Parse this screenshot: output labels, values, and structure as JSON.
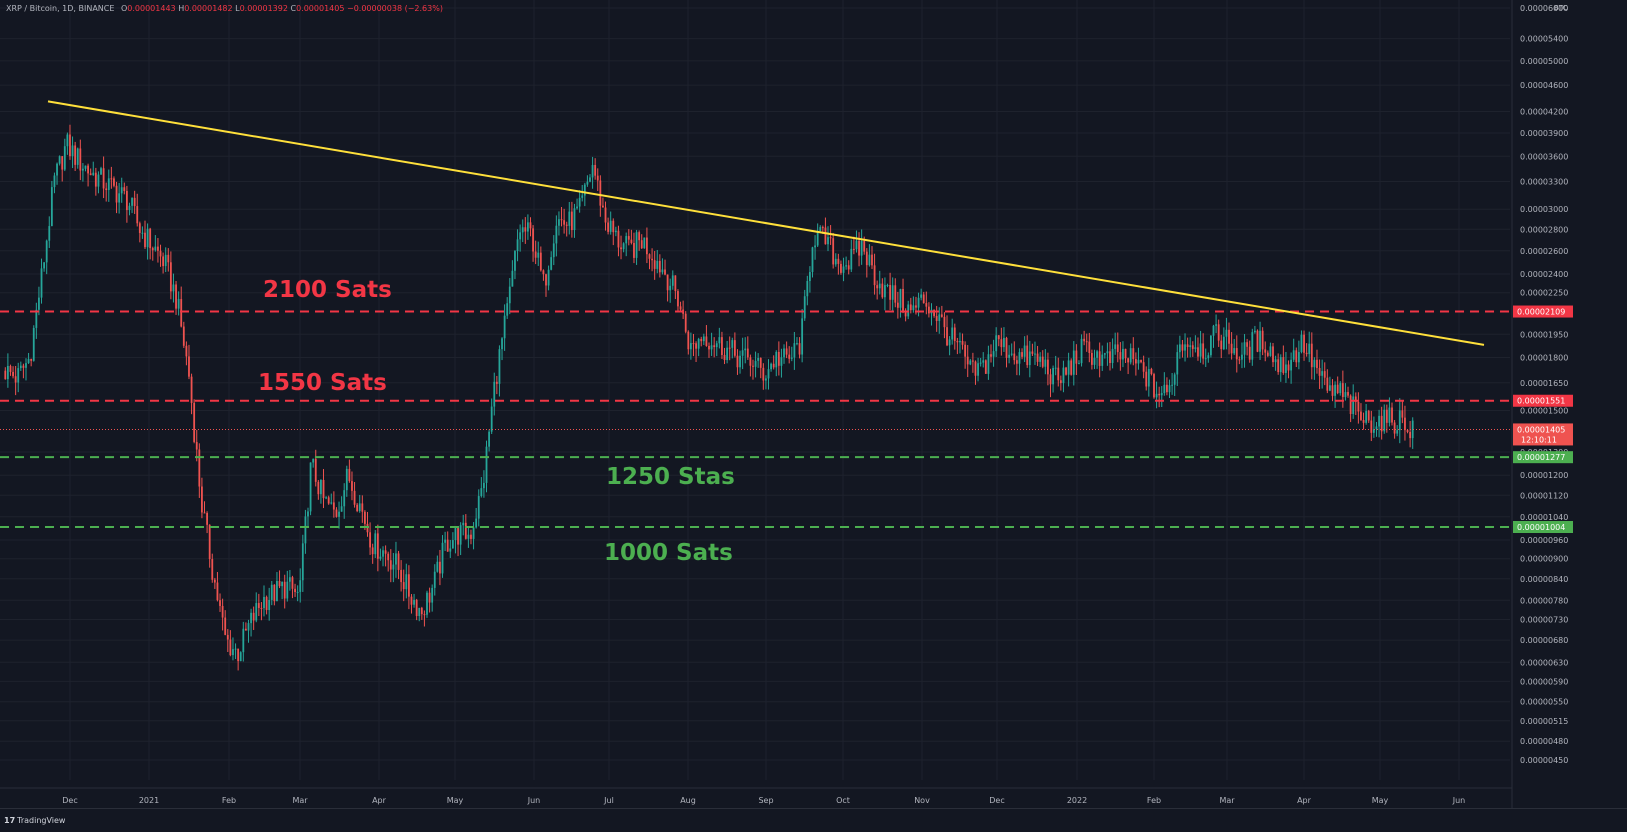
{
  "header": {
    "symbol": "XRP / Bitcoin, 1D, BINANCE",
    "open_label": "O",
    "open": "0.00001443",
    "high_label": "H",
    "high": "0.00001482",
    "low_label": "L",
    "low": "0.00001392",
    "close_label": "C",
    "close": "0.00001405",
    "change": "−0.00000038 (−2.63%)"
  },
  "footer": {
    "brand": "TradingView"
  },
  "colors": {
    "background": "#131722",
    "grid": "#1e222d",
    "candle_up": "#26a69a",
    "candle_down": "#ef5350",
    "resistance": "#f23645",
    "support": "#4caf50",
    "trendline": "#ffe03b",
    "axis_text": "#b2b5be"
  },
  "chart_data": {
    "type": "candlestick",
    "title": "",
    "xlabel": "",
    "ylabel": "",
    "y_scale": "log",
    "y_unit": "BTC",
    "ylim": [
      4.2e-06,
      6e-05
    ],
    "x_ticks": [
      "Dec",
      "2021",
      "Feb",
      "Mar",
      "Apr",
      "May",
      "Jun",
      "Jul",
      "Aug",
      "Sep",
      "Oct",
      "Nov",
      "Dec",
      "2022",
      "Feb",
      "Mar",
      "Apr",
      "May",
      "Jun"
    ],
    "y_ticks": [
      "0.00006000",
      "0.00005400",
      "0.00005000",
      "0.00004600",
      "0.00004200",
      "0.00003900",
      "0.00003600",
      "0.00003300",
      "0.00003000",
      "0.00002800",
      "0.00002600",
      "0.00002400",
      "0.00002250",
      "0.00001950",
      "0.00001800",
      "0.00001650",
      "0.00001500",
      "0.00001300",
      "0.00001200",
      "0.00001120",
      "0.00001040",
      "0.00000960",
      "0.00000900",
      "0.00000840",
      "0.00000780",
      "0.00000730",
      "0.00000680",
      "0.00000630",
      "0.00000590",
      "0.00000550",
      "0.00000515",
      "0.00000480",
      "0.00000450"
    ],
    "closes": [
      1.72e-05,
      1.68e-05,
      1.8e-05,
      2.4e-05,
      3.3e-05,
      3.75e-05,
      3.55e-05,
      3.4e-05,
      3.3e-05,
      3.2e-05,
      3.1e-05,
      2.8e-05,
      2.65e-05,
      2.5e-05,
      2.2e-05,
      1.7e-05,
      1.1e-05,
      8.5e-06,
      6.8e-06,
      6.5e-06,
      7.2e-06,
      7.8e-06,
      8e-06,
      8.2e-06,
      7.9e-06,
      1.25e-05,
      1.1e-05,
      1.05e-05,
      1.2e-05,
      1.08e-05,
      9.5e-06,
      9.2e-06,
      8.8e-06,
      8e-06,
      7.5e-06,
      8.2e-06,
      9.5e-06,
      9.8e-06,
      9.8e-06,
      1.15e-05,
      1.65e-05,
      2.1e-05,
      2.8e-05,
      2.75e-05,
      2.3e-05,
      2.9e-05,
      2.85e-05,
      3e-05,
      3.5e-05,
      2.9e-05,
      2.7e-05,
      2.6e-05,
      2.7e-05,
      2.55e-05,
      2.4e-05,
      2.2e-05,
      1.85e-05,
      1.95e-05,
      1.9e-05,
      1.85e-05,
      1.8e-05,
      1.78e-05,
      1.7e-05,
      1.8e-05,
      1.78e-05,
      1.9e-05,
      2.75e-05,
      2.7e-05,
      2.5e-05,
      2.5e-05,
      2.65e-05,
      2.4e-05,
      2.25e-05,
      2.2e-05,
      2.1e-05,
      2.2e-05,
      2.1e-05,
      1.95e-05,
      1.85e-05,
      1.7e-05,
      1.75e-05,
      1.9e-05,
      1.85e-05,
      1.8e-05,
      1.8e-05,
      1.75e-05,
      1.65e-05,
      1.75e-05,
      1.85e-05,
      1.82e-05,
      1.78e-05,
      1.82e-05,
      1.78e-05,
      1.72e-05,
      1.6e-05,
      1.58e-05,
      1.9e-05,
      1.9e-05,
      1.85e-05,
      1.95e-05,
      1.9e-05,
      1.8e-05,
      1.9e-05,
      1.9e-05,
      1.75e-05,
      1.78e-05,
      1.9e-05,
      1.75e-05,
      1.6e-05,
      1.6e-05,
      1.52e-05,
      1.45e-05,
      1.45e-05,
      1.45e-05,
      1.45e-05,
      1.41e-05
    ],
    "annotations": [
      {
        "text": "2100 Sats",
        "role": "resistance"
      },
      {
        "text": "1550 Sats",
        "role": "resistance"
      },
      {
        "text": "1250 Stas",
        "role": "support"
      },
      {
        "text": "1000 Sats",
        "role": "support"
      }
    ],
    "horizontal_levels": [
      {
        "value": 2.109e-05,
        "label": "0.00002109",
        "role": "resistance",
        "style": "dashed"
      },
      {
        "value": 1.551e-05,
        "label": "0.00001551",
        "role": "resistance",
        "style": "dashed"
      },
      {
        "value": 1.277e-05,
        "label": "0.00001277",
        "role": "support",
        "style": "dashed"
      },
      {
        "value": 1.004e-05,
        "label": "0.00001004",
        "role": "support",
        "style": "dashed"
      }
    ],
    "current_price": {
      "value": 1.405e-05,
      "label": "0.00001405",
      "countdown": "12:10:11"
    },
    "trendline": {
      "start": {
        "x_index": 0,
        "value": 4.35e-05
      },
      "end": {
        "x_index": 117,
        "value": 1.88e-05
      }
    }
  }
}
